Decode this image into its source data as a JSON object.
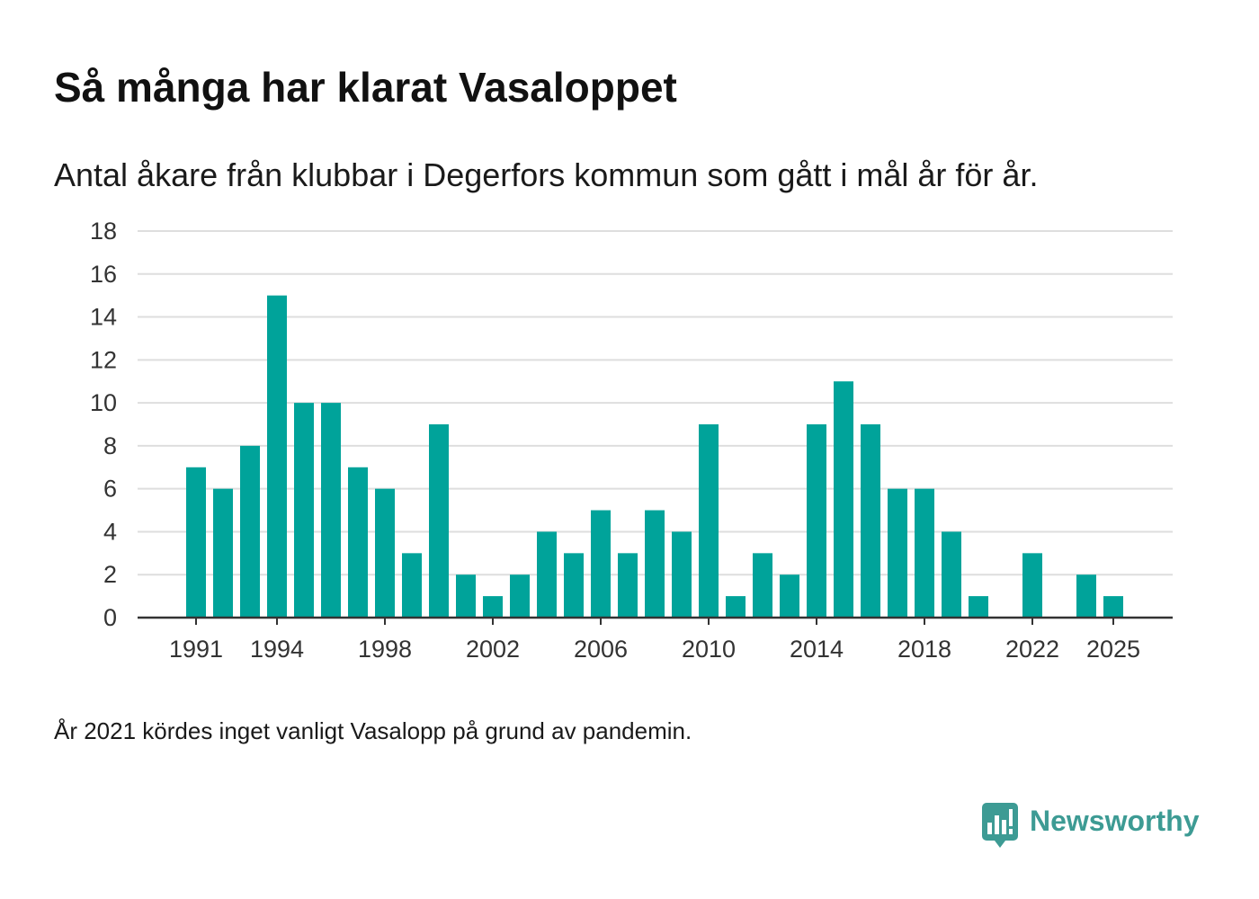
{
  "colors": {
    "bar": "#00a39a",
    "grid": "#dedede",
    "axis": "#333333",
    "axis_text": "#333333",
    "title": "#111111",
    "text": "#1a1a1a",
    "brand": "#3d9b94"
  },
  "brand": {
    "name": "Newsworthy",
    "icon": "newsworthy-logo-icon"
  },
  "chart_data": {
    "type": "bar",
    "title": "Så många har klarat Vasaloppet",
    "subtitle": "Antal åkare från klubbar i Degerfors kommun som gått i mål år för år.",
    "note": "År 2021 kördes inget vanligt Vasalopp på grund av pandemin.",
    "x": [
      1991,
      1992,
      1993,
      1994,
      1995,
      1996,
      1997,
      1998,
      1999,
      2000,
      2001,
      2002,
      2003,
      2004,
      2005,
      2006,
      2007,
      2008,
      2009,
      2010,
      2011,
      2012,
      2013,
      2014,
      2015,
      2016,
      2017,
      2018,
      2019,
      2020,
      2021,
      2022,
      2023,
      2024,
      2025
    ],
    "values": [
      7,
      6,
      8,
      15,
      10,
      10,
      7,
      6,
      3,
      9,
      2,
      1,
      2,
      4,
      3,
      5,
      3,
      5,
      4,
      9,
      1,
      3,
      2,
      9,
      11,
      9,
      6,
      6,
      4,
      1,
      null,
      3,
      0,
      2,
      1
    ],
    "xticks": [
      1991,
      1994,
      1998,
      2002,
      2006,
      2010,
      2014,
      2018,
      2022,
      2025
    ],
    "yticks": [
      0,
      2,
      4,
      6,
      8,
      10,
      12,
      14,
      16,
      18
    ],
    "ylim": [
      0,
      18
    ],
    "grid": true
  }
}
